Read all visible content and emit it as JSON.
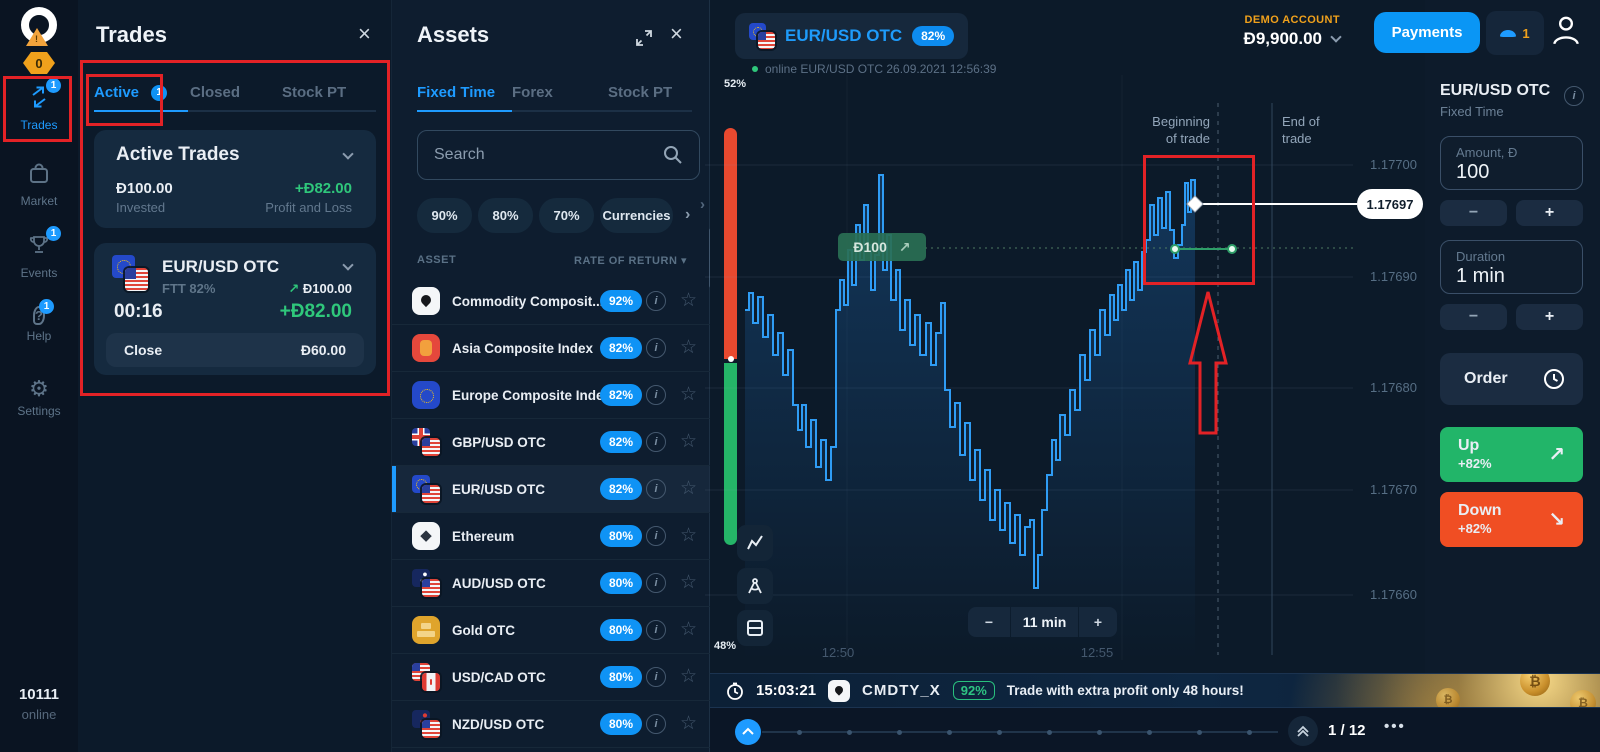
{
  "icons": {
    "close": "×",
    "star": "☆",
    "info": "i",
    "sort_down": "▾",
    "chevron_right": "›",
    "arrow_up_right": "↗",
    "arrow_down_right": "↘",
    "more": "•••",
    "minus": "−",
    "plus": "+",
    "eth_diamond": "◆",
    "btc": "₿"
  },
  "sidebar": {
    "logo_alert": "!",
    "logo_badge": "0",
    "items": [
      {
        "label": "Trades",
        "badge": "1"
      },
      {
        "label": "Market",
        "badge": ""
      },
      {
        "label": "Events",
        "badge": "1"
      },
      {
        "label": "Help",
        "badge": "1"
      },
      {
        "label": "Settings",
        "badge": ""
      }
    ],
    "footer": {
      "id": "10111",
      "status": "online"
    }
  },
  "trades_panel": {
    "title": "Trades",
    "tabs": [
      {
        "label": "Active",
        "badge": "1"
      },
      {
        "label": "Closed"
      },
      {
        "label": "Stock PT"
      }
    ],
    "summary": {
      "title": "Active Trades",
      "invested_value": "Đ100.00",
      "invested_label": "Invested",
      "pnl_value": "+Đ82.00",
      "pnl_label": "Profit and Loss"
    },
    "trade": {
      "asset": "EUR/USD OTC",
      "type": "FTT 82%",
      "amount": "Đ100.00",
      "timer": "00:16",
      "pnl": "+Đ82.00",
      "close_label": "Close",
      "close_value": "Đ60.00"
    }
  },
  "assets_panel": {
    "title": "Assets",
    "tabs": [
      {
        "label": "Fixed Time"
      },
      {
        "label": "Forex"
      },
      {
        "label": "Stock PT"
      }
    ],
    "search_placeholder": "Search",
    "chips": [
      {
        "label": "90%"
      },
      {
        "label": "80%"
      },
      {
        "label": "70%"
      },
      {
        "label": "Currencies"
      }
    ],
    "columns": {
      "asset": "ASSET",
      "rate": "RATE OF RETURN"
    },
    "rows": [
      {
        "name": "Commodity Composit...",
        "rate": "92%"
      },
      {
        "name": "Asia Composite Index",
        "rate": "82%"
      },
      {
        "name": "Europe Composite Index",
        "rate": "82%"
      },
      {
        "name": "GBP/USD OTC",
        "rate": "82%"
      },
      {
        "name": "EUR/USD OTC",
        "rate": "82%"
      },
      {
        "name": "Ethereum",
        "rate": "80%"
      },
      {
        "name": "AUD/USD OTC",
        "rate": "80%"
      },
      {
        "name": "Gold OTC",
        "rate": "80%"
      },
      {
        "name": "USD/CAD OTC",
        "rate": "80%"
      },
      {
        "name": "NZD/USD OTC",
        "rate": "80%"
      }
    ]
  },
  "header": {
    "account_type": "DEMO ACCOUNT",
    "balance": "Đ9,900.00",
    "payments_label": "Payments",
    "notification_count": "1"
  },
  "chart": {
    "symbol": "EUR/USD OTC",
    "rate_badge": "82%",
    "status": "online EUR/USD OTC  26.09.2021 12:56:39",
    "sentiment_up": "52%",
    "sentiment_down": "48%",
    "trade_badge": "Đ100",
    "begin_line1": "Beginning",
    "begin_line2": "of trade",
    "end_line1": "End of",
    "end_line2": "trade",
    "current_price_label": "1.17697",
    "zoom_label": "11 min"
  },
  "chart_data": {
    "type": "line",
    "symbol": "EUR/USD OTC",
    "timeframe_window": "11 min",
    "x_ticks": [
      "12:50",
      "12:55"
    ],
    "y_ticks": [
      "1.17700",
      "1.17690",
      "1.17680",
      "1.17670",
      "1.17660"
    ],
    "y_range": [
      1.17655,
      1.17708
    ],
    "current_price": 1.17697,
    "entry_price": 1.17693,
    "trade": {
      "direction": "up",
      "amount": "Đ100",
      "invested_display": "Đ100",
      "start_label": "Beginning of trade",
      "end_label": "End of trade"
    },
    "sentiment": {
      "up_pct": 52,
      "down_pct": 48
    },
    "polyline": [
      [
        40,
        235
      ],
      [
        44,
        218
      ],
      [
        48,
        248
      ],
      [
        53,
        222
      ],
      [
        58,
        262
      ],
      [
        63,
        240
      ],
      [
        68,
        280
      ],
      [
        73,
        258
      ],
      [
        78,
        300
      ],
      [
        83,
        275
      ],
      [
        88,
        330
      ],
      [
        93,
        355
      ],
      [
        97,
        330
      ],
      [
        101,
        372
      ],
      [
        106,
        345
      ],
      [
        111,
        392
      ],
      [
        116,
        365
      ],
      [
        121,
        405
      ],
      [
        126,
        372
      ],
      [
        131,
        235
      ],
      [
        135,
        205
      ],
      [
        139,
        230
      ],
      [
        143,
        175
      ],
      [
        147,
        210
      ],
      [
        151,
        150
      ],
      [
        155,
        185
      ],
      [
        159,
        130
      ],
      [
        163,
        170
      ],
      [
        166,
        215
      ],
      [
        170,
        180
      ],
      [
        174,
        100
      ],
      [
        178,
        195
      ],
      [
        182,
        160
      ],
      [
        186,
        225
      ],
      [
        191,
        195
      ],
      [
        195,
        255
      ],
      [
        200,
        225
      ],
      [
        205,
        270
      ],
      [
        210,
        240
      ],
      [
        215,
        280
      ],
      [
        221,
        248
      ],
      [
        226,
        290
      ],
      [
        231,
        258
      ],
      [
        236,
        228
      ],
      [
        240,
        315
      ],
      [
        245,
        352
      ],
      [
        250,
        328
      ],
      [
        255,
        380
      ],
      [
        260,
        348
      ],
      [
        265,
        405
      ],
      [
        270,
        375
      ],
      [
        275,
        425
      ],
      [
        280,
        395
      ],
      [
        285,
        445
      ],
      [
        290,
        415
      ],
      [
        295,
        455
      ],
      [
        300,
        428
      ],
      [
        305,
        468
      ],
      [
        310,
        440
      ],
      [
        315,
        480
      ],
      [
        320,
        452
      ],
      [
        325,
        445
      ],
      [
        329,
        513
      ],
      [
        333,
        480
      ],
      [
        337,
        435
      ],
      [
        342,
        400
      ],
      [
        347,
        365
      ],
      [
        351,
        385
      ],
      [
        355,
        340
      ],
      [
        360,
        360
      ],
      [
        365,
        315
      ],
      [
        370,
        335
      ],
      [
        375,
        280
      ],
      [
        380,
        305
      ],
      [
        385,
        255
      ],
      [
        390,
        280
      ],
      [
        395,
        235
      ],
      [
        400,
        260
      ],
      [
        405,
        220
      ],
      [
        409,
        245
      ],
      [
        413,
        210
      ],
      [
        417,
        235
      ],
      [
        421,
        195
      ],
      [
        425,
        225
      ],
      [
        429,
        187
      ],
      [
        433,
        215
      ],
      [
        437,
        177
      ],
      [
        441,
        165
      ],
      [
        445,
        130
      ],
      [
        449,
        160
      ],
      [
        453,
        123
      ],
      [
        457,
        153
      ],
      [
        461,
        117
      ],
      [
        465,
        155
      ],
      [
        469,
        183
      ],
      [
        473,
        170
      ],
      [
        477,
        150
      ],
      [
        480,
        108
      ],
      [
        483,
        137
      ],
      [
        486,
        105
      ],
      [
        490,
        129
      ]
    ]
  },
  "order_panel": {
    "title": "EUR/USD OTC",
    "subtitle": "Fixed Time",
    "amount_label": "Amount, Đ",
    "amount_value": "100",
    "duration_label": "Duration",
    "duration_value": "1 min",
    "order_label": "Order",
    "up_label": "Up",
    "up_rate": "+82%",
    "down_label": "Down",
    "down_rate": "+82%"
  },
  "promo": {
    "time": "15:03:21",
    "asset": "CMDTY_X",
    "rate": "92%",
    "message": "Trade with extra profit only 48 hours!"
  },
  "bottom_bar": {
    "page": "1 / 12"
  }
}
